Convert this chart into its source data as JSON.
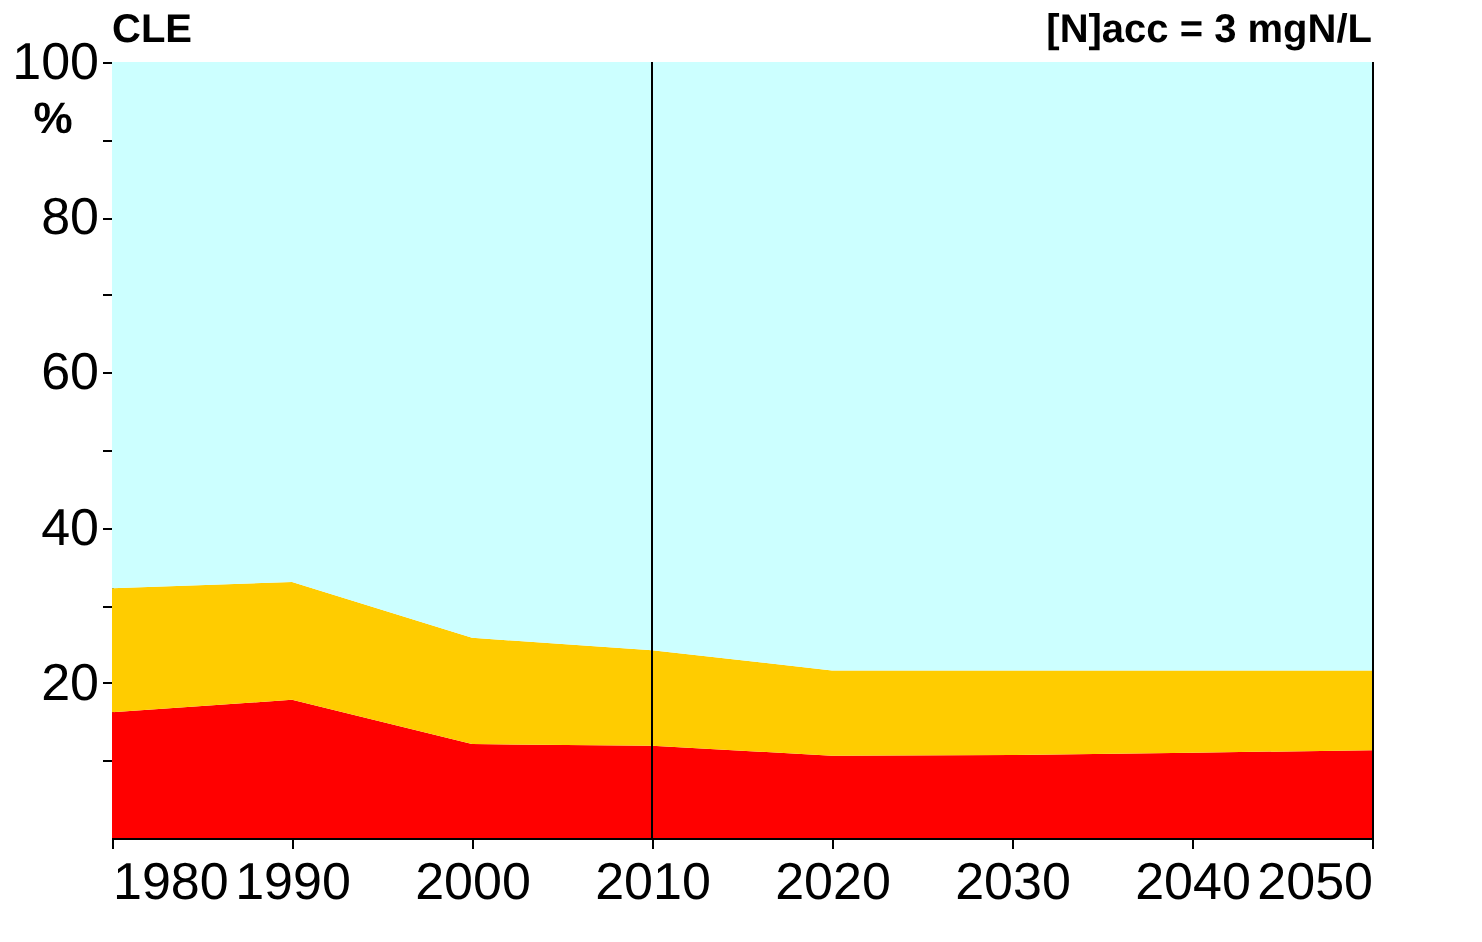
{
  "chart_data": {
    "type": "area",
    "title": "CLE",
    "ylabel": "%",
    "annotations": [
      "[N]acc = 3 mgN/L"
    ],
    "x": [
      1980,
      1990,
      2000,
      2010,
      2020,
      2030,
      2040,
      2050
    ],
    "stacked": true,
    "series": [
      {
        "color": "#ff0000",
        "values": [
          16.2,
          17.8,
          12.1,
          11.9,
          10.6,
          10.7,
          11.0,
          11.3
        ]
      },
      {
        "color": "#ffcc00",
        "values": [
          16.0,
          15.2,
          13.7,
          12.3,
          11.0,
          10.9,
          10.6,
          10.3
        ]
      },
      {
        "color": "#ccffff",
        "values": [
          67.8,
          67.0,
          74.2,
          75.8,
          78.4,
          78.4,
          78.4,
          78.4
        ]
      }
    ],
    "xlim": [
      1980,
      2050
    ],
    "xticks": [
      1980,
      1990,
      2000,
      2010,
      2020,
      2030,
      2040,
      2050
    ],
    "ylim": [
      0,
      100
    ],
    "yticks": [
      {
        "value": 10,
        "label": null
      },
      20,
      {
        "value": 30,
        "label": null
      },
      40,
      {
        "value": 50,
        "label": null
      },
      60,
      {
        "value": 70,
        "label": null
      },
      80,
      {
        "value": 90,
        "label": null
      },
      100
    ],
    "ref_lines": [
      {
        "axis": "x",
        "value": 2010,
        "color": "#000000"
      }
    ],
    "grid": false,
    "legend": false
  }
}
